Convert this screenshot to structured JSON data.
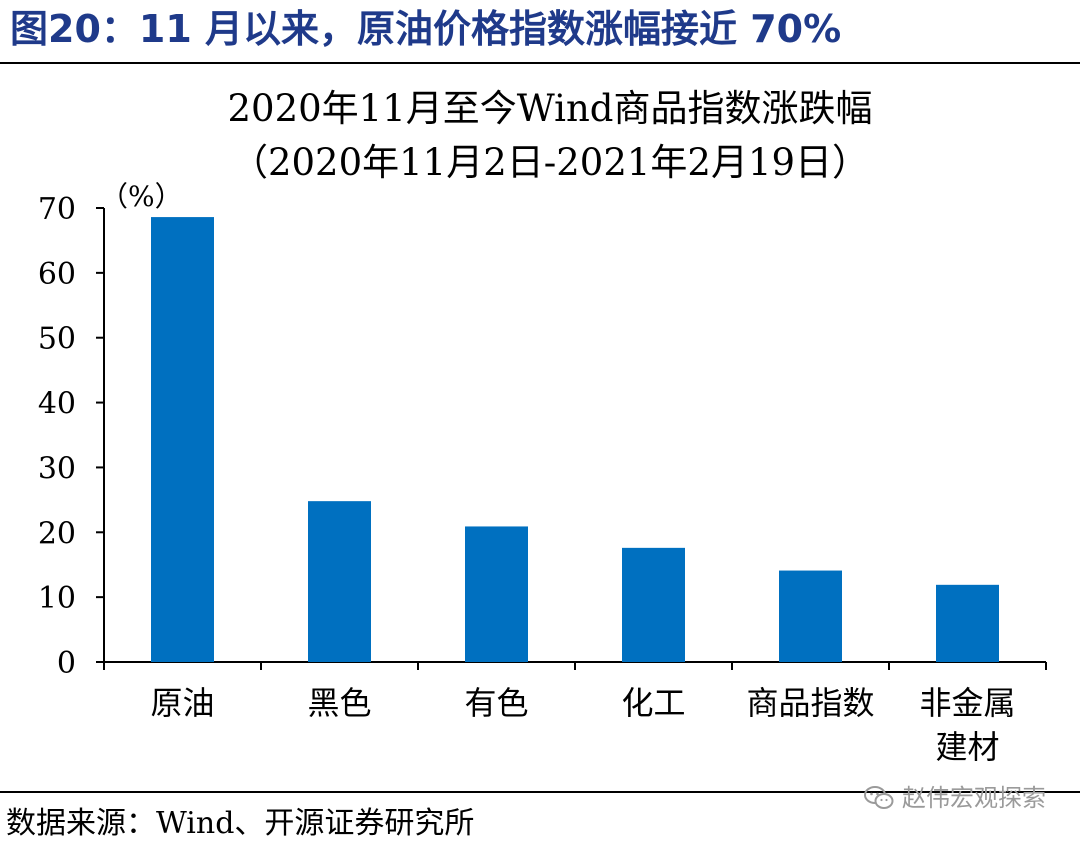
{
  "figure": {
    "title": "图20：11 月以来，原油价格指数涨幅接近 70%",
    "source": "数据来源：Wind、开源证券研究所",
    "watermark": "赵伟宏观探索"
  },
  "colors": {
    "bar": "#0070C0",
    "figure_title": "#1f3a8a"
  },
  "chart_data": {
    "type": "bar",
    "title": "2020年11月至今Wind商品指数涨跌幅",
    "subtitle": "（2020年11月2日-2021年2月19日）",
    "ylabel": "（%）",
    "xlabel": "",
    "categories": [
      [
        "原油"
      ],
      [
        "黑色"
      ],
      [
        "有色"
      ],
      [
        "化工"
      ],
      [
        "商品指数"
      ],
      [
        "非金属",
        "建材"
      ]
    ],
    "values": [
      68.6,
      24.8,
      20.9,
      17.6,
      14.1,
      11.9
    ],
    "ylim": [
      0,
      70
    ],
    "yticks": [
      0,
      10,
      20,
      30,
      40,
      50,
      60,
      70
    ],
    "grid": false,
    "legend": "none"
  }
}
